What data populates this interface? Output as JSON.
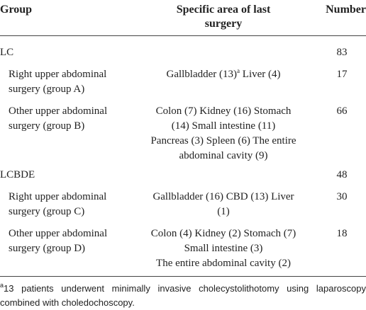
{
  "table": {
    "header": {
      "group": "Group",
      "area": [
        "Specific area of last",
        "surgery"
      ],
      "number": "Number"
    },
    "rows": [
      {
        "group": [
          "LC"
        ],
        "area": [],
        "number": "83"
      },
      {
        "group": [
          "Right upper abdominal",
          "surgery (group A)"
        ],
        "area": [],
        "area_main": "Gallbladder (13)",
        "area_sup": "a",
        "area_after": " Liver (4)",
        "number": "17"
      },
      {
        "group": [
          "Other upper abdominal",
          "surgery (group B)"
        ],
        "area": [
          "Colon (7) Kidney (16) Stomach",
          "(14) Small intestine (11)",
          "Pancreas (3) Spleen (6) The entire",
          "abdominal cavity (9)"
        ],
        "number": "66"
      },
      {
        "group": [
          "LCBDE"
        ],
        "area": [],
        "number": "48"
      },
      {
        "group": [
          "Right upper abdominal",
          "surgery (group C)"
        ],
        "area": [
          "Gallbladder (16) CBD (13) Liver",
          "(1)"
        ],
        "number": "30"
      },
      {
        "group": [
          "Other upper abdominal",
          "surgery (group D)"
        ],
        "area": [
          "Colon (4) Kidney (2) Stomach (7)",
          "Small intestine (3)",
          "The entire abdominal cavity (2)"
        ],
        "number": "18"
      }
    ],
    "footnote": {
      "mark": "a",
      "text": "13 patients underwent minimally invasive cholecystolithotomy using laparoscopy combined with choledochoscopy."
    }
  }
}
